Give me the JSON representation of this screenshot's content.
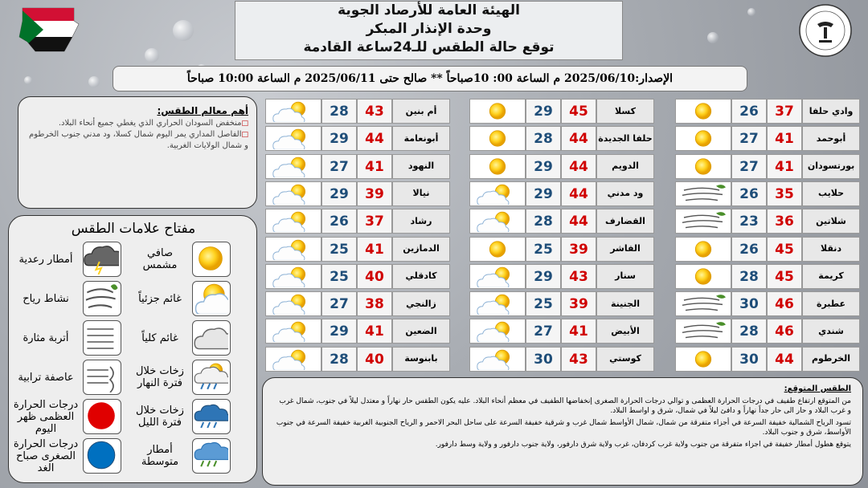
{
  "header": {
    "lines": [
      "الهيئة العامة للأرصاد الجوية",
      "وحدة الإنذار المبكر",
      "توقع حالة الطقس للـ24ساعة القادمة"
    ]
  },
  "issue": "الإصدار:2025/06/10  م الساعة 00: 10صباحاً ** صالح حتى 2025/06/11  م الساعة 10:00 صباحاً",
  "features": {
    "heading": "أهم معالم الطقس:",
    "items": [
      "منخفض السودان الحراري الذي يغطي جميع أنحاء البلاد.",
      "الفاصل المداري يمر اليوم شمال كسلا، ود مدني جنوب الخرطوم و شمال الولايات الغربية."
    ]
  },
  "legend": {
    "title": "مفتاح علامات الطقس",
    "items": [
      {
        "label": "صافي مشمس",
        "icon": "sun"
      },
      {
        "label": "أمطار رعدية",
        "icon": "thunder"
      },
      {
        "label": "غائم جزئياً",
        "icon": "partly"
      },
      {
        "label": "نشاط رياح",
        "icon": "wind"
      },
      {
        "label": "غائم كلياً",
        "icon": "cloudy"
      },
      {
        "label": "أتربة مثارة",
        "icon": "dust"
      },
      {
        "label": "زخات خلال فترة النهار",
        "icon": "dayshower"
      },
      {
        "label": "عاصفة ترابية",
        "icon": "duststorm"
      },
      {
        "label": "زخات خلال فترة الليل",
        "icon": "nightshower"
      },
      {
        "label": "درجات الحرارة العظمى ظهر اليوم",
        "icon": "red"
      },
      {
        "label": "أمطار متوسطة",
        "icon": "rain"
      },
      {
        "label": "درجات الحرارة الصغرى صباح الغد",
        "icon": "blue"
      }
    ]
  },
  "cities": [
    [
      {
        "city": "وادي حلفا",
        "max": 37,
        "min": 26,
        "icon": "sun"
      },
      {
        "city": "أبوحمد",
        "max": 41,
        "min": 27,
        "icon": "sun"
      },
      {
        "city": "بورتسودان",
        "max": 41,
        "min": 27,
        "icon": "sun"
      },
      {
        "city": "حلايب",
        "max": 35,
        "min": 26,
        "icon": "wind"
      },
      {
        "city": "شلاتين",
        "max": 36,
        "min": 23,
        "icon": "wind"
      },
      {
        "city": "دنقلا",
        "max": 45,
        "min": 26,
        "icon": "sun"
      },
      {
        "city": "كريمة",
        "max": 45,
        "min": 28,
        "icon": "sun"
      },
      {
        "city": "عطبرة",
        "max": 46,
        "min": 30,
        "icon": "wind"
      },
      {
        "city": "شندي",
        "max": 46,
        "min": 28,
        "icon": "wind"
      },
      {
        "city": "الخرطوم",
        "max": 44,
        "min": 30,
        "icon": "sun"
      }
    ],
    [
      {
        "city": "كسلا",
        "max": 45,
        "min": 29,
        "icon": "sun"
      },
      {
        "city": "حلفا الجديدة",
        "max": 44,
        "min": 28,
        "icon": "sun"
      },
      {
        "city": "الدويم",
        "max": 44,
        "min": 29,
        "icon": "sun"
      },
      {
        "city": "ود مدني",
        "max": 44,
        "min": 29,
        "icon": "partly"
      },
      {
        "city": "القضارف",
        "max": 44,
        "min": 28,
        "icon": "partly"
      },
      {
        "city": "الفاشر",
        "max": 39,
        "min": 25,
        "icon": "sun"
      },
      {
        "city": "سنار",
        "max": 43,
        "min": 29,
        "icon": "partly"
      },
      {
        "city": "الجنينة",
        "max": 39,
        "min": 25,
        "icon": "partly"
      },
      {
        "city": "الأبيض",
        "max": 41,
        "min": 27,
        "icon": "partly"
      },
      {
        "city": "كوستي",
        "max": 43,
        "min": 30,
        "icon": "partly"
      }
    ],
    [
      {
        "city": "أم بنين",
        "max": 43,
        "min": 28,
        "icon": "partly"
      },
      {
        "city": "أبونعامة",
        "max": 44,
        "min": 29,
        "icon": "partly"
      },
      {
        "city": "النهود",
        "max": 41,
        "min": 27,
        "icon": "partly"
      },
      {
        "city": "نيالا",
        "max": 39,
        "min": 29,
        "icon": "partly"
      },
      {
        "city": "رشاد",
        "max": 37,
        "min": 26,
        "icon": "partly"
      },
      {
        "city": "الدمازين",
        "max": 41,
        "min": 25,
        "icon": "partly"
      },
      {
        "city": "كادقلي",
        "max": 40,
        "min": 25,
        "icon": "partly"
      },
      {
        "city": "زالنجي",
        "max": 38,
        "min": 27,
        "icon": "partly"
      },
      {
        "city": "الضعين",
        "max": 41,
        "min": 29,
        "icon": "partly"
      },
      {
        "city": "بابنوسة",
        "max": 40,
        "min": 28,
        "icon": "partly"
      }
    ]
  ],
  "expected": {
    "heading": "الطقس المتوقع:",
    "paragraphs": [
      "من المتوقع ارتفاع طفيف في درجات الحرارة العظمى و توالي درجات الحرارة الصغرى إنخفاضها الطفيف في معظم أنحاء البلاد. عليه يكون الطقس حار نهاراً و معتدل ليلاً في جنوب، شمال غرب و غرب البلاد و حار الى حار جداً نهاراً و دافئ ليلاً في شمال، شرق و اواسط البلاد.",
      "تسود الرياح الشمالية خفيفة السرعة في أجزاء متفرقة من شمال، شمال الأواسط شمال غرب و شرقية خفيفة السرعة على ساحل البحر الاحمر و الرياح الجنوبية الغربية خفيفة السرعة في جنوب الأواسط، شرق و جنوب البلاد.",
      "يتوقع هطول أمطار خفيفة في اجزاء متفرقة من جنوب ولاية غرب كردفان، غرب ولاية شرق دارفور، ولاية جنوب دارفور و ولاية وسط دارفور."
    ]
  }
}
